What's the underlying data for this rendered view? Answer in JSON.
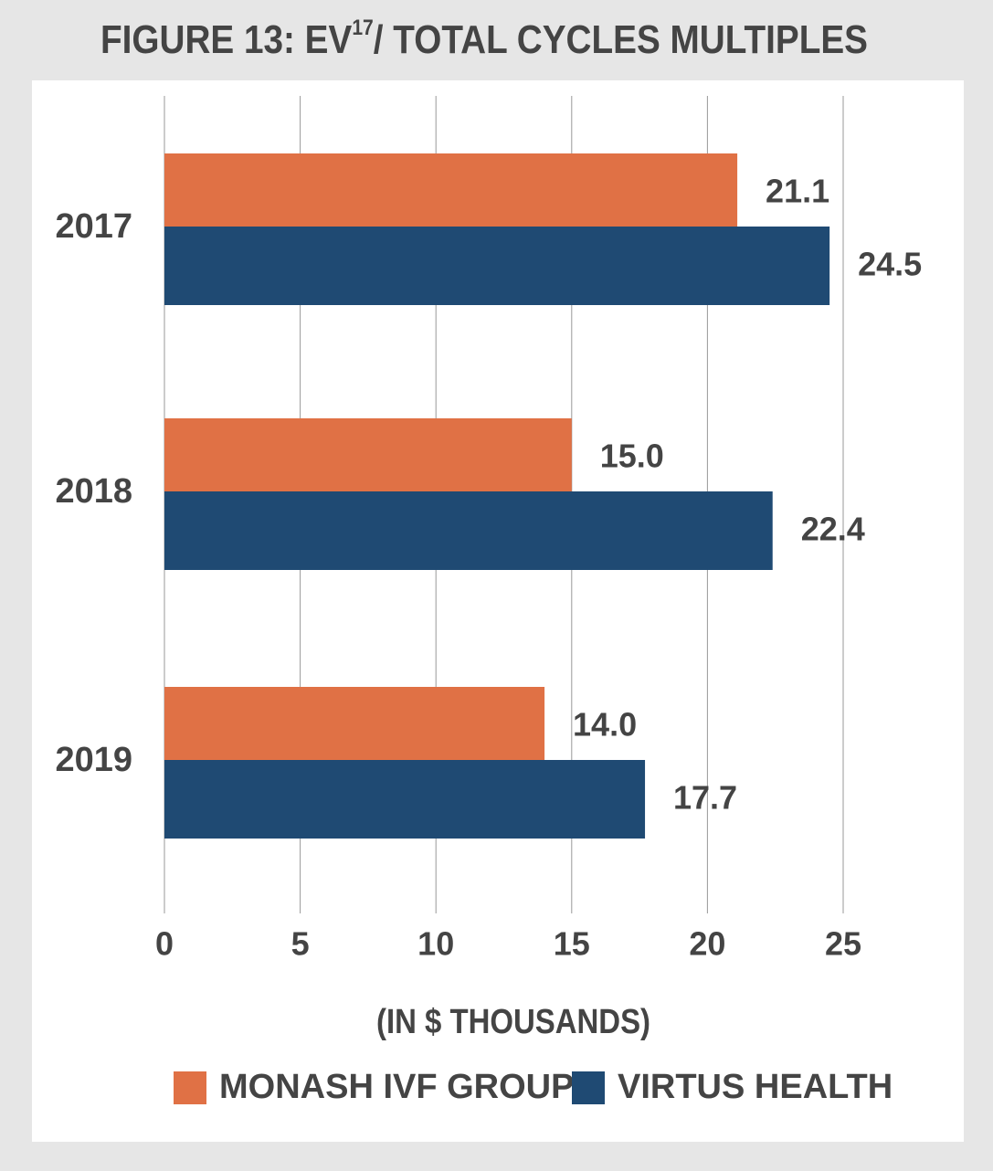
{
  "chart_data": {
    "type": "bar",
    "orientation": "horizontal",
    "title": [
      "FIGURE 13: EV",
      "17",
      "/ TOTAL CYCLES MULTIPLES"
    ],
    "x_label": "(IN $ THOUSANDS)",
    "categories": [
      "2017",
      "2018",
      "2019"
    ],
    "series": [
      {
        "name": "MONASH IVF GROUP",
        "color": "#e07145",
        "values": [
          21.1,
          15.0,
          14.0
        ],
        "value_labels": [
          "21.1",
          "15.0",
          "14.0"
        ]
      },
      {
        "name": "VIRTUS HEALTH",
        "color": "#1f4a73",
        "values": [
          24.5,
          22.4,
          17.7
        ],
        "value_labels": [
          "24.5",
          "22.4",
          "17.7"
        ]
      }
    ],
    "xlim": [
      0,
      25
    ],
    "xticks": [
      0,
      5,
      10,
      15,
      20,
      25
    ],
    "grid": true,
    "legend": "bottom"
  }
}
